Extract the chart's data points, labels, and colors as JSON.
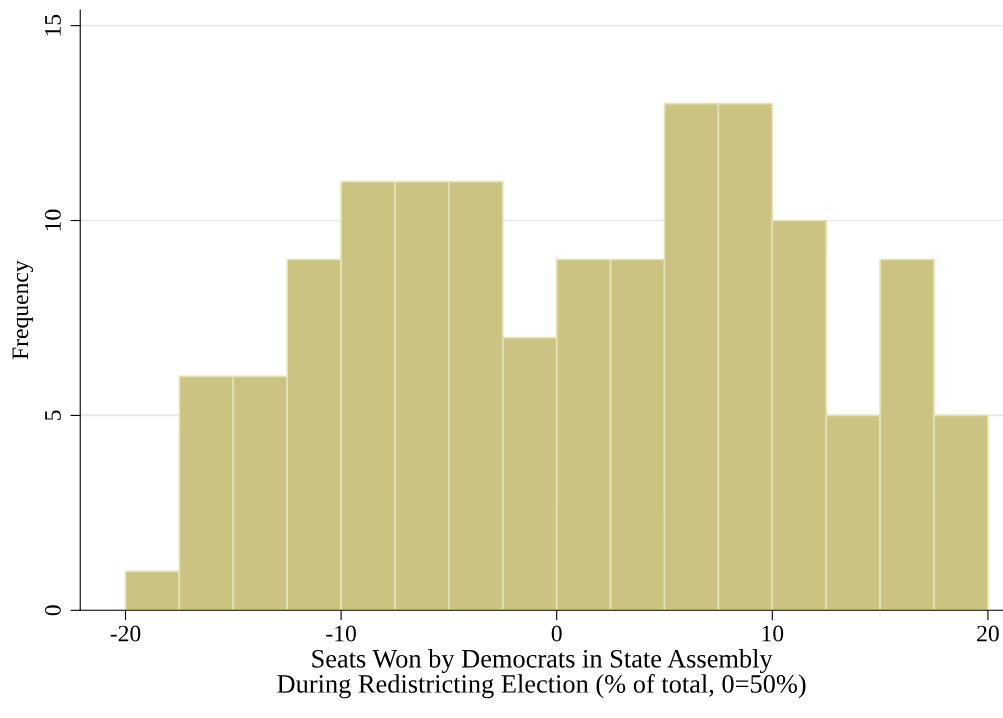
{
  "chart_data": {
    "type": "histogram",
    "xlabel": "Seats Won by Democrats in State Assembly\nDuring Redistricting Election (% of total, 0=50%)",
    "ylabel": "Frequency",
    "bins": [
      -20,
      -17.5,
      -15,
      -12.5,
      -10,
      -7.5,
      -5,
      -2.5,
      0,
      2.5,
      5,
      7.5,
      10,
      12.5,
      15,
      17.5,
      20
    ],
    "values": [
      1,
      6,
      6,
      9,
      11,
      11,
      11,
      7,
      9,
      9,
      13,
      13,
      10,
      5,
      9,
      5
    ],
    "color": "#cbc382",
    "xlim": [
      -22.1,
      20.7
    ],
    "ylim": [
      0,
      15.4
    ],
    "xticks": [
      -20,
      -10,
      0,
      10,
      20
    ],
    "yticks": [
      0,
      5,
      10,
      15
    ],
    "grid": "y"
  }
}
